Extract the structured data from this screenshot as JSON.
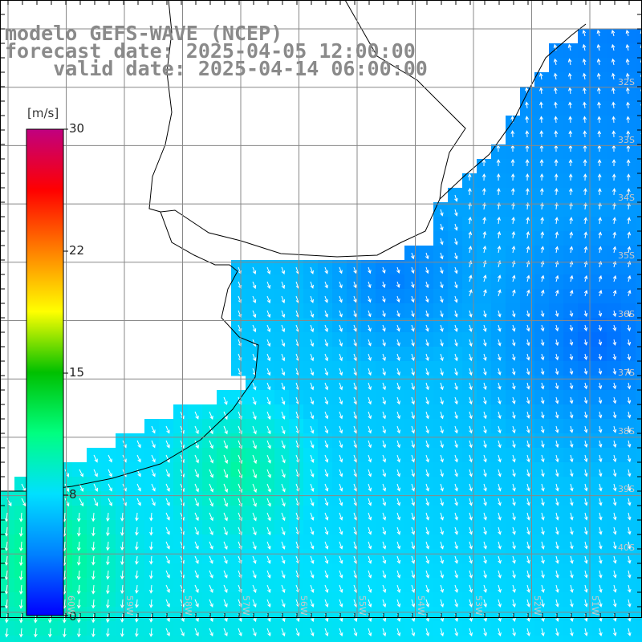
{
  "title": {
    "model": "modelo GEFS-WAVE (NCEP)",
    "forecast": "forecast date: 2025-04-05 12:00:00",
    "valid": "    valid date: 2025-04-14 06:00:00"
  },
  "colorbar": {
    "unit": "[m/s]",
    "ticks": [
      "30",
      "22",
      "15",
      "8",
      "0"
    ],
    "colors": [
      "#0000ff",
      "#0080ff",
      "#00e0ff",
      "#00ff80",
      "#00c000",
      "#ffff00",
      "#ff8000",
      "#ff0000",
      "#c00080"
    ]
  },
  "lat_labels": [
    "32S",
    "33S",
    "34S",
    "35S",
    "36S",
    "37S",
    "38S",
    "39S",
    "40S"
  ],
  "lon_labels": [
    "60W",
    "59W",
    "58W",
    "57W",
    "56W",
    "55W",
    "54W",
    "53W",
    "52W",
    "51W"
  ],
  "land_color": "#ffffff",
  "grid_color": "#888888"
}
